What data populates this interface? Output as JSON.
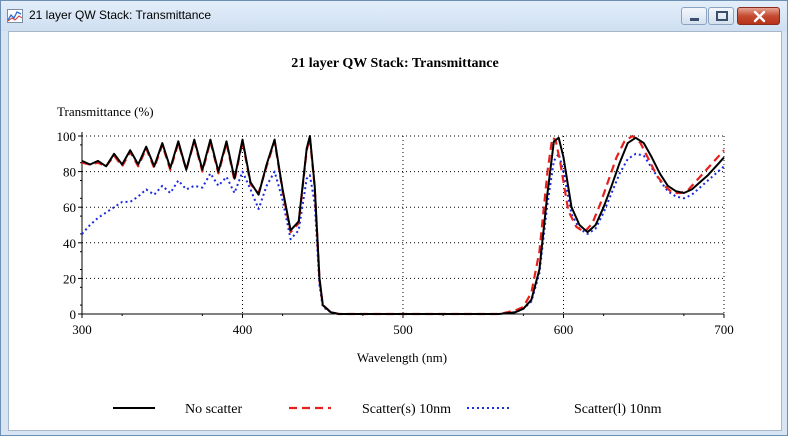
{
  "window": {
    "title": "21 layer QW Stack: Transmittance",
    "icon": "chart-icon"
  },
  "chart_data": {
    "type": "line",
    "title": "21 layer QW Stack: Transmittance",
    "xlabel": "Wavelength (nm)",
    "ylabel": "Transmittance (%)",
    "xlim": [
      300,
      700
    ],
    "ylim": [
      0,
      100
    ],
    "x_ticks": [
      300,
      400,
      500,
      600,
      700
    ],
    "y_ticks": [
      0,
      20,
      40,
      60,
      80,
      100
    ],
    "grid": true,
    "legend": "bottom",
    "series": [
      {
        "name": "No scatter",
        "color": "#000000",
        "style": "solid",
        "x": [
          300,
          305,
          310,
          315,
          320,
          325,
          330,
          335,
          340,
          345,
          350,
          355,
          360,
          365,
          370,
          375,
          380,
          385,
          390,
          395,
          400,
          405,
          410,
          415,
          420,
          425,
          430,
          435,
          440,
          442,
          445,
          448,
          450,
          455,
          460,
          470,
          480,
          500,
          520,
          540,
          560,
          570,
          575,
          580,
          585,
          590,
          594,
          597,
          600,
          605,
          610,
          615,
          620,
          625,
          630,
          635,
          640,
          645,
          650,
          655,
          660,
          665,
          670,
          675,
          680,
          685,
          690,
          695,
          700
        ],
        "y": [
          86,
          84,
          86,
          83,
          90,
          84,
          92,
          84,
          94,
          83,
          96,
          82,
          97,
          81,
          98,
          81,
          98,
          80,
          97,
          76,
          98,
          74,
          67,
          84,
          98,
          70,
          47,
          52,
          93,
          100,
          72,
          20,
          5,
          1,
          0,
          0,
          0,
          0,
          0,
          0,
          0,
          1,
          3,
          8,
          25,
          68,
          97,
          99,
          88,
          60,
          50,
          46,
          50,
          60,
          72,
          85,
          96,
          99,
          96,
          88,
          79,
          72,
          69,
          68,
          70,
          74,
          78,
          83,
          88
        ]
      },
      {
        "name": "Scatter(s) 10nm",
        "color": "#e8201c",
        "style": "dashed",
        "x": [
          300,
          305,
          310,
          315,
          320,
          325,
          330,
          335,
          340,
          345,
          350,
          355,
          360,
          365,
          370,
          375,
          380,
          385,
          390,
          395,
          400,
          405,
          410,
          415,
          420,
          425,
          430,
          435,
          440,
          442,
          445,
          448,
          450,
          455,
          460,
          470,
          480,
          500,
          520,
          540,
          560,
          570,
          575,
          580,
          585,
          590,
          593,
          595,
          598,
          603,
          608,
          613,
          618,
          623,
          628,
          633,
          638,
          643,
          648,
          653,
          658,
          663,
          668,
          673,
          678,
          683,
          688,
          693,
          700
        ],
        "y": [
          85,
          84,
          85,
          83,
          89,
          83,
          91,
          83,
          93,
          82,
          95,
          81,
          96,
          81,
          97,
          80,
          97,
          79,
          96,
          75,
          97,
          73,
          68,
          83,
          97,
          69,
          46,
          51,
          92,
          99,
          71,
          19,
          5,
          1,
          0,
          0,
          0,
          0,
          0,
          0,
          0,
          2,
          4,
          12,
          35,
          80,
          99,
          98,
          85,
          58,
          49,
          46,
          51,
          62,
          75,
          88,
          97,
          100,
          96,
          87,
          78,
          72,
          68,
          68,
          70,
          75,
          80,
          85,
          92
        ]
      },
      {
        "name": "Scatter(l) 10nm",
        "color": "#1a2be0",
        "style": "dotted",
        "x": [
          300,
          305,
          310,
          315,
          320,
          325,
          330,
          335,
          340,
          345,
          350,
          355,
          360,
          365,
          370,
          375,
          380,
          385,
          390,
          395,
          400,
          405,
          410,
          415,
          420,
          425,
          430,
          435,
          440,
          442,
          445,
          448,
          450,
          455,
          460,
          470,
          480,
          500,
          520,
          540,
          560,
          570,
          575,
          580,
          585,
          590,
          594,
          597,
          600,
          605,
          610,
          615,
          620,
          625,
          630,
          635,
          640,
          645,
          650,
          655,
          660,
          665,
          670,
          675,
          680,
          685,
          690,
          695,
          700
        ],
        "y": [
          45,
          50,
          54,
          57,
          60,
          63,
          63,
          66,
          70,
          67,
          72,
          68,
          75,
          70,
          72,
          71,
          79,
          72,
          77,
          68,
          80,
          70,
          59,
          72,
          80,
          64,
          42,
          47,
          76,
          78,
          62,
          16,
          4,
          1,
          0,
          0,
          0,
          0,
          0,
          0,
          0,
          1,
          3,
          7,
          23,
          62,
          86,
          90,
          80,
          56,
          48,
          45,
          48,
          57,
          68,
          79,
          87,
          90,
          89,
          82,
          75,
          69,
          66,
          65,
          67,
          71,
          75,
          79,
          83
        ]
      }
    ]
  }
}
